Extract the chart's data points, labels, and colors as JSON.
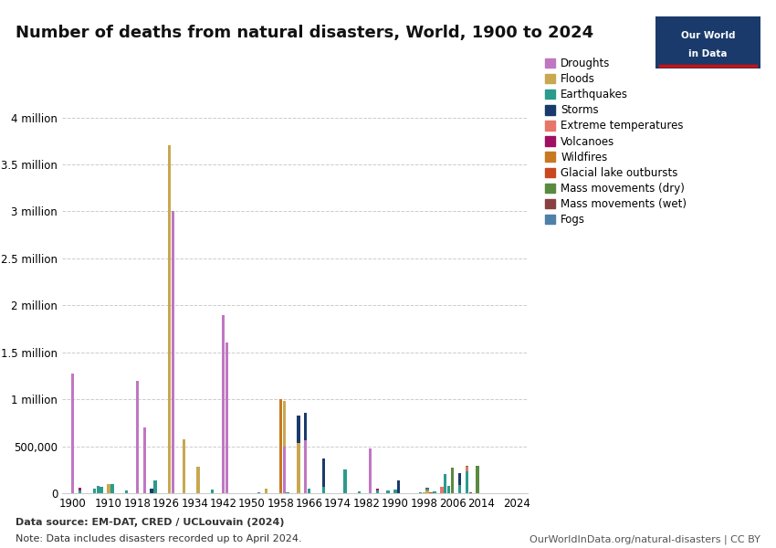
{
  "title": "Number of deaths from natural disasters, World, 1900 to 2024",
  "datasource": "Data source: EM-DAT, CRED / UCLouvain (2024)",
  "note": "Note: Data includes disasters recorded up to April 2024.",
  "website": "OurWorldInData.org/natural-disasters | CC BY",
  "xticks": [
    1900,
    1910,
    1918,
    1926,
    1934,
    1942,
    1950,
    1958,
    1966,
    1974,
    1982,
    1990,
    1998,
    2006,
    2014,
    2024
  ],
  "ylim": [
    0,
    4200000
  ],
  "yticks": [
    0,
    500000,
    1000000,
    1500000,
    2000000,
    2500000,
    3000000,
    3500000,
    4000000
  ],
  "categories": [
    "Droughts",
    "Floods",
    "Earthquakes",
    "Storms",
    "Extreme temperatures",
    "Volcanoes",
    "Wildfires",
    "Glacial lake outbursts",
    "Mass movements (dry)",
    "Mass movements (wet)",
    "Fogs"
  ],
  "colors": {
    "Droughts": "#C077C2",
    "Floods": "#C8A850",
    "Earthquakes": "#2B9B8E",
    "Storms": "#1A3A6B",
    "Extreme temperatures": "#E8756A",
    "Volcanoes": "#A01060",
    "Wildfires": "#C87820",
    "Glacial lake outbursts": "#C84820",
    "Mass movements (dry)": "#5A8A40",
    "Mass movements (wet)": "#8A4040",
    "Fogs": "#5080A8"
  },
  "disaster_values": {
    "Droughts": {
      "1900": 1270000,
      "1918": 1200000,
      "1920": 700000,
      "1928": 3000000,
      "1942": 1900000,
      "1943": 1600000,
      "1959": 500000,
      "1965": 560000,
      "1983": 480000
    },
    "Floods": {
      "1910": 100000,
      "1927": 3700000,
      "1931": 570000,
      "1935": 280000,
      "1954": 50000,
      "1959": 480000,
      "1963": 530000,
      "1998": 10000,
      "1999": 30000
    },
    "Earthquakes": {
      "1902": 25000,
      "1906": 50000,
      "1907": 75000,
      "1908": 70000,
      "1911": 100000,
      "1915": 30000,
      "1923": 140000,
      "1939": 35000,
      "1960": 12000,
      "1966": 50000,
      "1970": 70000,
      "1976": 255000,
      "1980": 18000,
      "1985": 25000,
      "1988": 25000,
      "1990": 40000,
      "1997": 10000,
      "1999": 20000,
      "2001": 20000,
      "2004": 200000,
      "2005": 75000,
      "2008": 85000,
      "2010": 230000
    },
    "Storms": {
      "1922": 50000,
      "1963": 300000,
      "1965": 300000,
      "1970": 300000,
      "1991": 140000,
      "2008": 130000
    },
    "Extreme temperatures": {
      "1995": 800,
      "2003": 70000,
      "2010": 55000
    },
    "Volcanoes": {
      "1902": 30000,
      "1985": 25000
    },
    "Wildfires": {
      "1958": 1000000
    },
    "Glacial lake outbursts": {
      "2000": 5000
    },
    "Mass movements (dry)": {
      "2006": 270000,
      "2010": 5000,
      "2013": 290000
    },
    "Mass movements (wet)": {
      "1999": 5000,
      "2011": 5000
    },
    "Fogs": {
      "1952": 12000
    }
  }
}
